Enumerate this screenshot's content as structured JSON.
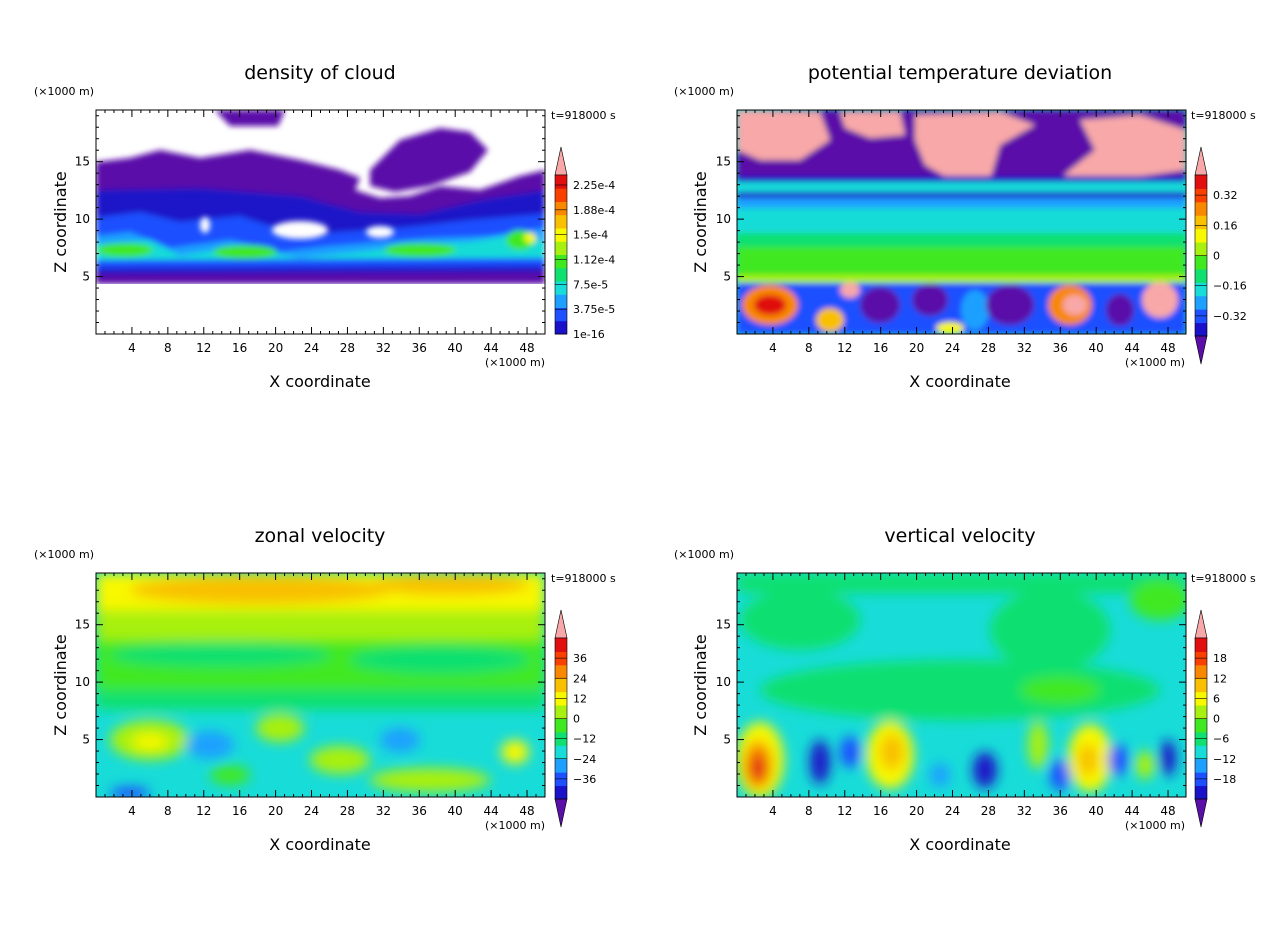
{
  "figure": {
    "panels": [
      {
        "title": "density of cloud",
        "time_label": "t=918000 s",
        "y_unit": "(×1000 m)",
        "x_unit": "(×1000 m)",
        "xlabel": "X coordinate",
        "ylabel": "Z coordinate",
        "colorbar": {
          "labels": [
            "1e-16",
            "3.75e-5",
            "7.5e-5",
            "1.12e-4",
            "1.5e-4",
            "1.88e-4",
            "2.25e-4"
          ],
          "colors": [
            "#5a10a8",
            "#1a12c8",
            "#1e50ff",
            "#1ea0ff",
            "#18dcd8",
            "#10e070",
            "#40e820",
            "#a8f010",
            "#f8f800",
            "#f8c000",
            "#f88800",
            "#f84000",
            "#e01010",
            "#f8a8a8"
          ],
          "arrows": "top"
        }
      },
      {
        "title": "potential temperature deviation",
        "time_label": "t=918000 s",
        "y_unit": "(×1000 m)",
        "x_unit": "(×1000 m)",
        "xlabel": "X coordinate",
        "ylabel": "Z coordinate",
        "colorbar": {
          "labels": [
            "−0.32",
            "−0.16",
            "0",
            "0.16",
            "0.32"
          ],
          "colors": [
            "#5a10a8",
            "#1a12c8",
            "#1e50ff",
            "#1ea0ff",
            "#18dcd8",
            "#10e070",
            "#40e820",
            "#a8f010",
            "#f8f800",
            "#f8c000",
            "#f88800",
            "#f84000",
            "#e01010",
            "#f8a8a8"
          ],
          "arrows": "both"
        }
      },
      {
        "title": "zonal velocity",
        "time_label": "t=918000 s",
        "y_unit": "(×1000 m)",
        "x_unit": "(×1000 m)",
        "xlabel": "X coordinate",
        "ylabel": "Z coordinate",
        "colorbar": {
          "labels": [
            "−36",
            "−24",
            "−12",
            "0",
            "12",
            "24",
            "36"
          ],
          "colors": [
            "#5a10a8",
            "#1a12c8",
            "#1e50ff",
            "#1ea0ff",
            "#18dcd8",
            "#10e070",
            "#40e820",
            "#a8f010",
            "#f8f800",
            "#f8c000",
            "#f88800",
            "#f84000",
            "#e01010",
            "#f8a8a8"
          ],
          "arrows": "both"
        }
      },
      {
        "title": "vertical velocity",
        "time_label": "t=918000 s",
        "y_unit": "(×1000 m)",
        "x_unit": "(×1000 m)",
        "xlabel": "X coordinate",
        "ylabel": "Z coordinate",
        "colorbar": {
          "labels": [
            "−18",
            "−12",
            "−6",
            "0",
            "6",
            "12",
            "18"
          ],
          "colors": [
            "#5a10a8",
            "#1a12c8",
            "#1e50ff",
            "#1ea0ff",
            "#18dcd8",
            "#10e070",
            "#40e820",
            "#a8f010",
            "#f8f800",
            "#f8c000",
            "#f88800",
            "#f84000",
            "#e01010",
            "#f8a8a8"
          ],
          "arrows": "both"
        }
      }
    ]
  },
  "chart_data": [
    {
      "type": "heatmap",
      "title": "density of cloud",
      "xlabel": "X coordinate",
      "ylabel": "Z coordinate",
      "x_ticks": [
        4,
        8,
        12,
        16,
        20,
        24,
        28,
        32,
        36,
        40,
        44,
        48
      ],
      "y_ticks": [
        5,
        10,
        15
      ],
      "xlim": [
        0,
        50
      ],
      "ylim": [
        0,
        19.5
      ],
      "colorbar_levels": [
        "1e-16",
        "3.75e-5",
        "7.5e-5",
        "1.12e-4",
        "1.5e-4",
        "1.88e-4",
        "2.25e-4"
      ],
      "features": [
        {
          "z_range": [
            5,
            7.5
          ],
          "level": "high"
        },
        {
          "z_range": [
            7.5,
            12
          ],
          "level": "low"
        },
        {
          "z_range": [
            12,
            16
          ],
          "level": "lowest"
        }
      ]
    },
    {
      "type": "heatmap",
      "title": "potential temperature deviation",
      "xlabel": "X coordinate",
      "ylabel": "Z coordinate",
      "x_ticks": [
        4,
        8,
        12,
        16,
        20,
        24,
        28,
        32,
        36,
        40,
        44,
        48
      ],
      "y_ticks": [
        5,
        10,
        15
      ],
      "xlim": [
        0,
        50
      ],
      "ylim": [
        0,
        19.5
      ],
      "colorbar_levels": [
        -0.32,
        -0.16,
        0,
        0.16,
        0.32
      ]
    },
    {
      "type": "heatmap",
      "title": "zonal velocity",
      "xlabel": "X coordinate",
      "ylabel": "Z coordinate",
      "x_ticks": [
        4,
        8,
        12,
        16,
        20,
        24,
        28,
        32,
        36,
        40,
        44,
        48
      ],
      "y_ticks": [
        5,
        10,
        15
      ],
      "xlim": [
        0,
        50
      ],
      "ylim": [
        0,
        19.5
      ],
      "colorbar_levels": [
        -36,
        -24,
        -12,
        0,
        12,
        24,
        36
      ]
    },
    {
      "type": "heatmap",
      "title": "vertical velocity",
      "xlabel": "X coordinate",
      "ylabel": "Z coordinate",
      "x_ticks": [
        4,
        8,
        12,
        16,
        20,
        24,
        28,
        32,
        36,
        40,
        44,
        48
      ],
      "y_ticks": [
        5,
        10,
        15
      ],
      "xlim": [
        0,
        50
      ],
      "ylim": [
        0,
        19.5
      ],
      "colorbar_levels": [
        -18,
        -12,
        -6,
        0,
        6,
        12,
        18
      ]
    }
  ]
}
